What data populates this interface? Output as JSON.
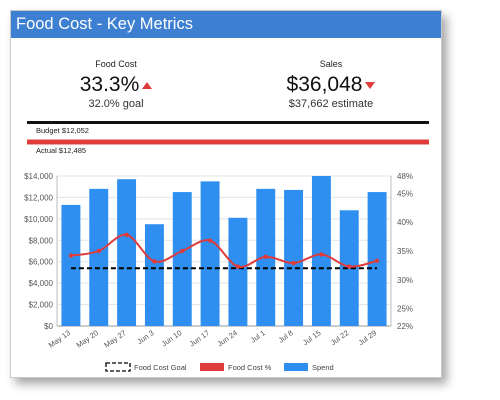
{
  "header": {
    "title": "Food Cost - Key Metrics"
  },
  "food_cost": {
    "label": "Food Cost",
    "value": "33.3%",
    "sub": "32.0% goal",
    "trend": "up"
  },
  "sales": {
    "label": "Sales",
    "value": "$36,048",
    "sub": "$37,662 estimate",
    "trend": "down"
  },
  "budget": {
    "budget_label": "Budget $12,052",
    "actual_label": "Actual $12,485"
  },
  "colors": {
    "header": "#3d7fd1",
    "bars": "#2f8ff0",
    "food_cost_line": "#e03b3b",
    "goal_line": "#000000",
    "arrow": "#e03b3b"
  },
  "chart_data": {
    "type": "bar",
    "categories": [
      "May 13",
      "May 20",
      "May 27",
      "Jun 3",
      "Jun 10",
      "Jun 17",
      "Jun 24",
      "Jul 1",
      "Jul 8",
      "Jul 15",
      "Jul 22",
      "Jul 29"
    ],
    "series": [
      {
        "name": "Spend",
        "type": "bar",
        "axis": "left",
        "values": [
          11300,
          12800,
          13700,
          9500,
          12500,
          13500,
          10100,
          12800,
          12700,
          14000,
          10800,
          12500
        ]
      },
      {
        "name": "Food Cost %",
        "type": "line",
        "axis": "right",
        "values": [
          34.2,
          35.0,
          37.8,
          33.2,
          35.0,
          36.8,
          32.3,
          34.0,
          32.9,
          34.4,
          32.3,
          33.3
        ]
      },
      {
        "name": "Food Cost Goal",
        "type": "line",
        "axis": "right",
        "style": "dashed",
        "values": [
          32.0,
          32.0,
          32.0,
          32.0,
          32.0,
          32.0,
          32.0,
          32.0,
          32.0,
          32.0,
          32.0,
          32.0
        ]
      }
    ],
    "left_axis": {
      "ticks": [
        "$0",
        "$2,000",
        "$4,000",
        "$6,000",
        "$8,000",
        "$10,000",
        "$12,000",
        "$14,000"
      ],
      "ylim": [
        0,
        14000
      ]
    },
    "right_axis": {
      "ticks": [
        "22%",
        "25%",
        "30%",
        "35%",
        "40%",
        "45%",
        "48%"
      ],
      "tick_values": [
        22,
        25,
        30,
        35,
        40,
        45,
        48
      ],
      "ylim": [
        22,
        48
      ]
    },
    "xlabel": "",
    "ylabel": "",
    "grid": true,
    "legend": {
      "position": "bottom",
      "items": [
        "Food Cost Goal",
        "Food Cost %",
        "Spend"
      ]
    }
  }
}
